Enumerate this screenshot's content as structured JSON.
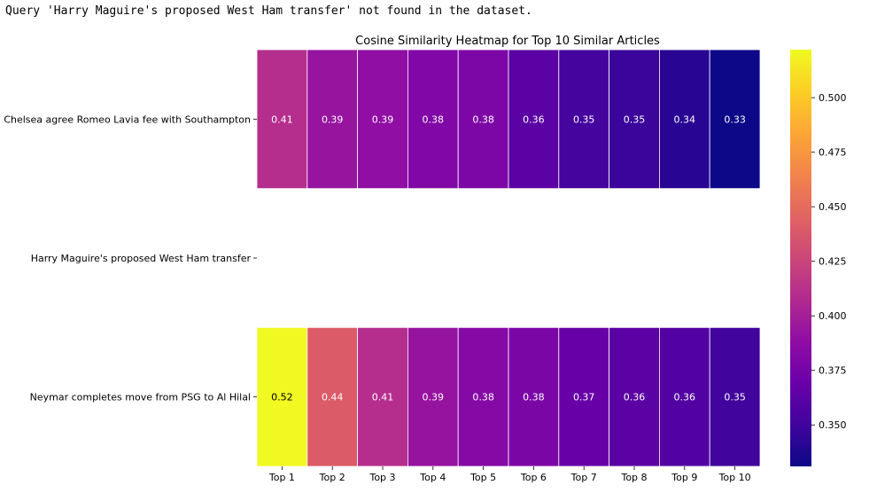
{
  "console": {
    "message": "Query 'Harry Maguire's proposed West Ham transfer' not found in the dataset."
  },
  "chart_data": {
    "type": "heatmap",
    "title": "Cosine Similarity Heatmap for Top 10 Similar Articles",
    "xlabel": "",
    "ylabel": "",
    "colormap": "plasma",
    "x_categories": [
      "Top 1",
      "Top 2",
      "Top 3",
      "Top 4",
      "Top 5",
      "Top 6",
      "Top 7",
      "Top 8",
      "Top 9",
      "Top 10"
    ],
    "y_categories": [
      "Chelsea agree Romeo Lavia fee with Southampton",
      "Harry Maguire's proposed West Ham transfer",
      "Neymar completes move from PSG to Al Hilal"
    ],
    "values": [
      [
        0.41,
        0.39,
        0.39,
        0.38,
        0.38,
        0.36,
        0.35,
        0.35,
        0.34,
        0.33
      ],
      [
        null,
        null,
        null,
        null,
        null,
        null,
        null,
        null,
        null,
        null
      ],
      [
        0.52,
        0.44,
        0.41,
        0.39,
        0.38,
        0.38,
        0.37,
        0.36,
        0.36,
        0.35
      ]
    ],
    "exact_values": [
      [
        0.41,
        0.393,
        0.389,
        0.381,
        0.379,
        0.362,
        0.352,
        0.348,
        0.341,
        0.331
      ],
      [
        null,
        null,
        null,
        null,
        null,
        null,
        null,
        null,
        null,
        null
      ],
      [
        0.522,
        0.44,
        0.41,
        0.392,
        0.383,
        0.378,
        0.368,
        0.362,
        0.358,
        0.35
      ]
    ],
    "colorbar": {
      "vmin": 0.331,
      "vmax": 0.522,
      "ticks": [
        0.35,
        0.375,
        0.4,
        0.425,
        0.45,
        0.475,
        0.5
      ],
      "tick_labels": [
        "0.350",
        "0.375",
        "0.400",
        "0.425",
        "0.450",
        "0.475",
        "0.500"
      ]
    },
    "annotate": true,
    "grid": false
  }
}
